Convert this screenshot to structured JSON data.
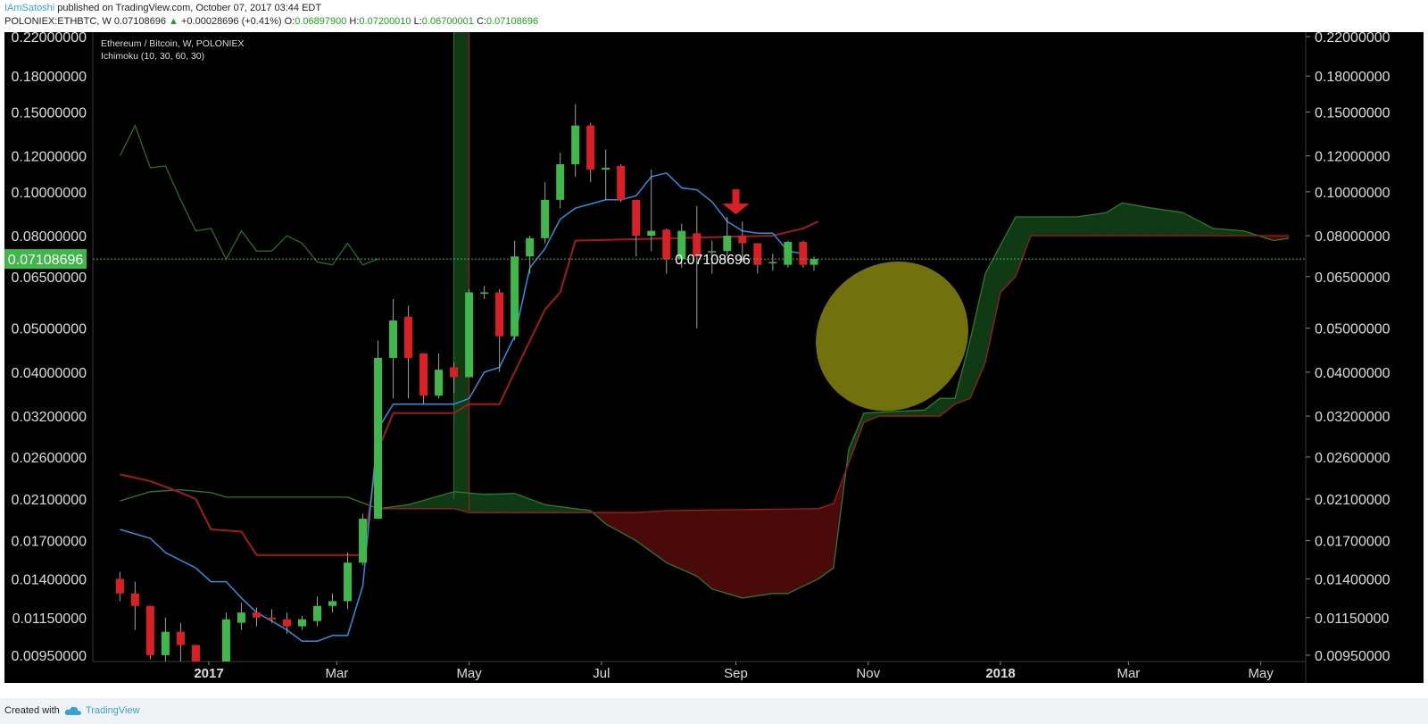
{
  "header": {
    "author": "IAmSatoshi",
    "published": " published on TradingView.com, October 07, 2017 03:44 EDT",
    "symbol": "POLONIEX:ETHBTC, W",
    "last": "0.07108696",
    "change_arrow": "▲",
    "change": "+0.00028696 (+0.41%)",
    "o_label": "O:",
    "o_value": "0.06897900",
    "h_label": "H:",
    "h_value": "0.07200010",
    "l_label": "L:",
    "l_value": "0.06700001",
    "c_label": "C:",
    "c_value": "0.07108696"
  },
  "footer": {
    "created_with": "Created with",
    "brand": "TradingView",
    "brand_icon": "tradingview-cloud-icon"
  },
  "colors": {
    "background": "#000000",
    "up_candle": "#3fb74b",
    "down_candle": "#d92026",
    "tenkan": "#2f8fe0",
    "kijun": "#a01c1c",
    "span_a": "#2d7a2d",
    "span_b": "#a01c1c",
    "cloud_bull": "#0f3a14",
    "cloud_bear": "#4a0a0a",
    "lagging": "#2f6a2a",
    "price_label_bg": "#3fb74b",
    "ellipse": "#8a8a10",
    "arrow": "#d92026",
    "axis_text": "#dcdcdc"
  },
  "chart_data": {
    "type": "candlestick",
    "title": "Ethereum / Bitcoin, W, POLONIEX",
    "indicator": "Ichimoku (10, 30, 60, 30)",
    "y_scale": "log",
    "ylim": [
      0.0092,
      0.225
    ],
    "y_ticks": [
      "0.22000000",
      "0.18000000",
      "0.15000000",
      "0.12000000",
      "0.10000000",
      "0.08000000",
      "0.06500000",
      "0.05000000",
      "0.04000000",
      "0.03200000",
      "0.02600000",
      "0.02100000",
      "0.01700000",
      "0.01400000",
      "0.01150000",
      "0.00950000"
    ],
    "x_labels": [
      {
        "label": "2017",
        "date": "2017-01-01",
        "bold": true
      },
      {
        "label": "Mar",
        "date": "2017-03-01",
        "bold": false
      },
      {
        "label": "May",
        "date": "2017-05-01",
        "bold": false
      },
      {
        "label": "Jul",
        "date": "2017-07-01",
        "bold": false
      },
      {
        "label": "Sep",
        "date": "2017-09-01",
        "bold": false
      },
      {
        "label": "Nov",
        "date": "2017-11-01",
        "bold": false
      },
      {
        "label": "2018",
        "date": "2018-01-01",
        "bold": true
      },
      {
        "label": "Mar",
        "date": "2018-03-01",
        "bold": false
      },
      {
        "label": "May",
        "date": "2018-05-01",
        "bold": false
      }
    ],
    "last_price": "0.07108696",
    "last_price_value": 0.07108696,
    "candles": [
      {
        "date": "2016-11-21",
        "o": 0.014,
        "h": 0.0145,
        "l": 0.0125,
        "c": 0.013
      },
      {
        "date": "2016-11-28",
        "o": 0.013,
        "h": 0.0138,
        "l": 0.0108,
        "c": 0.0122
      },
      {
        "date": "2016-12-05",
        "o": 0.0122,
        "h": 0.0122,
        "l": 0.0093,
        "c": 0.0095
      },
      {
        "date": "2016-12-12",
        "o": 0.0095,
        "h": 0.0115,
        "l": 0.009,
        "c": 0.0107
      },
      {
        "date": "2016-12-19",
        "o": 0.0107,
        "h": 0.0112,
        "l": 0.0092,
        "c": 0.01
      },
      {
        "date": "2016-12-26",
        "o": 0.01,
        "h": 0.01,
        "l": 0.0085,
        "c": 0.0086
      },
      {
        "date": "2017-01-09",
        "o": 0.0092,
        "h": 0.0118,
        "l": 0.009,
        "c": 0.0114
      },
      {
        "date": "2017-01-16",
        "o": 0.0112,
        "h": 0.0124,
        "l": 0.0108,
        "c": 0.0118
      },
      {
        "date": "2017-01-23",
        "o": 0.0118,
        "h": 0.0121,
        "l": 0.011,
        "c": 0.0115
      },
      {
        "date": "2017-01-30",
        "o": 0.0115,
        "h": 0.012,
        "l": 0.0112,
        "c": 0.0114
      },
      {
        "date": "2017-02-06",
        "o": 0.0114,
        "h": 0.0118,
        "l": 0.0106,
        "c": 0.011
      },
      {
        "date": "2017-02-13",
        "o": 0.011,
        "h": 0.0116,
        "l": 0.0108,
        "c": 0.0114
      },
      {
        "date": "2017-02-20",
        "o": 0.0113,
        "h": 0.0128,
        "l": 0.011,
        "c": 0.0122
      },
      {
        "date": "2017-02-27",
        "o": 0.0122,
        "h": 0.013,
        "l": 0.0118,
        "c": 0.0125
      },
      {
        "date": "2017-03-06",
        "o": 0.0125,
        "h": 0.016,
        "l": 0.012,
        "c": 0.0152
      },
      {
        "date": "2017-03-13",
        "o": 0.0152,
        "h": 0.0195,
        "l": 0.015,
        "c": 0.019
      },
      {
        "date": "2017-03-20",
        "o": 0.019,
        "h": 0.047,
        "l": 0.019,
        "c": 0.043
      },
      {
        "date": "2017-03-27",
        "o": 0.043,
        "h": 0.058,
        "l": 0.035,
        "c": 0.052
      },
      {
        "date": "2017-04-03",
        "o": 0.053,
        "h": 0.056,
        "l": 0.035,
        "c": 0.043
      },
      {
        "date": "2017-04-10",
        "o": 0.044,
        "h": 0.044,
        "l": 0.034,
        "c": 0.0355
      },
      {
        "date": "2017-04-17",
        "o": 0.0355,
        "h": 0.044,
        "l": 0.035,
        "c": 0.0405
      },
      {
        "date": "2017-04-24",
        "o": 0.041,
        "h": 0.042,
        "l": 0.036,
        "c": 0.039
      },
      {
        "date": "2017-05-01",
        "o": 0.039,
        "h": 0.061,
        "l": 0.039,
        "c": 0.06
      },
      {
        "date": "2017-05-08",
        "o": 0.06,
        "h": 0.062,
        "l": 0.058,
        "c": 0.06
      },
      {
        "date": "2017-05-15",
        "o": 0.06,
        "h": 0.061,
        "l": 0.04,
        "c": 0.048
      },
      {
        "date": "2017-05-22",
        "o": 0.048,
        "h": 0.078,
        "l": 0.047,
        "c": 0.072
      },
      {
        "date": "2017-05-29",
        "o": 0.072,
        "h": 0.08,
        "l": 0.066,
        "c": 0.079
      },
      {
        "date": "2017-06-05",
        "o": 0.079,
        "h": 0.105,
        "l": 0.077,
        "c": 0.096
      },
      {
        "date": "2017-06-12",
        "o": 0.096,
        "h": 0.122,
        "l": 0.092,
        "c": 0.115
      },
      {
        "date": "2017-06-19",
        "o": 0.115,
        "h": 0.156,
        "l": 0.108,
        "c": 0.14
      },
      {
        "date": "2017-06-26",
        "o": 0.14,
        "h": 0.142,
        "l": 0.105,
        "c": 0.112
      },
      {
        "date": "2017-07-03",
        "o": 0.112,
        "h": 0.124,
        "l": 0.096,
        "c": 0.113
      },
      {
        "date": "2017-07-10",
        "o": 0.114,
        "h": 0.115,
        "l": 0.095,
        "c": 0.096
      },
      {
        "date": "2017-07-17",
        "o": 0.096,
        "h": 0.096,
        "l": 0.072,
        "c": 0.08
      },
      {
        "date": "2017-07-24",
        "o": 0.08,
        "h": 0.112,
        "l": 0.074,
        "c": 0.082
      },
      {
        "date": "2017-07-31",
        "o": 0.0825,
        "h": 0.083,
        "l": 0.066,
        "c": 0.071
      },
      {
        "date": "2017-08-07",
        "o": 0.071,
        "h": 0.085,
        "l": 0.068,
        "c": 0.082
      },
      {
        "date": "2017-08-14",
        "o": 0.081,
        "h": 0.093,
        "l": 0.05,
        "c": 0.072
      },
      {
        "date": "2017-08-21",
        "o": 0.074,
        "h": 0.078,
        "l": 0.066,
        "c": 0.074
      },
      {
        "date": "2017-08-28",
        "o": 0.074,
        "h": 0.088,
        "l": 0.072,
        "c": 0.08
      },
      {
        "date": "2017-09-04",
        "o": 0.08,
        "h": 0.086,
        "l": 0.07,
        "c": 0.077
      },
      {
        "date": "2017-09-11",
        "o": 0.077,
        "h": 0.077,
        "l": 0.066,
        "c": 0.069
      },
      {
        "date": "2017-09-18",
        "o": 0.07,
        "h": 0.073,
        "l": 0.067,
        "c": 0.07
      },
      {
        "date": "2017-09-25",
        "o": 0.069,
        "h": 0.078,
        "l": 0.068,
        "c": 0.0775
      },
      {
        "date": "2017-10-02",
        "o": 0.0775,
        "h": 0.078,
        "l": 0.068,
        "c": 0.069
      },
      {
        "date": "2017-10-07",
        "o": 0.069,
        "h": 0.072,
        "l": 0.067,
        "c": 0.0711
      }
    ],
    "tenkan": [
      {
        "date": "2016-11-21",
        "v": 0.018
      },
      {
        "date": "2016-12-05",
        "v": 0.0172
      },
      {
        "date": "2016-12-12",
        "v": 0.016
      },
      {
        "date": "2016-12-26",
        "v": 0.0148
      },
      {
        "date": "2017-01-02",
        "v": 0.0138
      },
      {
        "date": "2017-01-09",
        "v": 0.0138
      },
      {
        "date": "2017-01-16",
        "v": 0.0127
      },
      {
        "date": "2017-01-23",
        "v": 0.0118
      },
      {
        "date": "2017-01-30",
        "v": 0.0113
      },
      {
        "date": "2017-02-06",
        "v": 0.0108
      },
      {
        "date": "2017-02-13",
        "v": 0.0102
      },
      {
        "date": "2017-02-20",
        "v": 0.0102
      },
      {
        "date": "2017-02-27",
        "v": 0.0105
      },
      {
        "date": "2017-03-06",
        "v": 0.0105
      },
      {
        "date": "2017-03-13",
        "v": 0.0135
      },
      {
        "date": "2017-03-20",
        "v": 0.03
      },
      {
        "date": "2017-03-27",
        "v": 0.034
      },
      {
        "date": "2017-04-03",
        "v": 0.034
      },
      {
        "date": "2017-04-24",
        "v": 0.034
      },
      {
        "date": "2017-05-01",
        "v": 0.035
      },
      {
        "date": "2017-05-08",
        "v": 0.04
      },
      {
        "date": "2017-05-15",
        "v": 0.041
      },
      {
        "date": "2017-05-22",
        "v": 0.048
      },
      {
        "date": "2017-05-29",
        "v": 0.068
      },
      {
        "date": "2017-06-05",
        "v": 0.075
      },
      {
        "date": "2017-06-12",
        "v": 0.087
      },
      {
        "date": "2017-06-19",
        "v": 0.092
      },
      {
        "date": "2017-06-26",
        "v": 0.094
      },
      {
        "date": "2017-07-03",
        "v": 0.096
      },
      {
        "date": "2017-07-10",
        "v": 0.096
      },
      {
        "date": "2017-07-17",
        "v": 0.098
      },
      {
        "date": "2017-07-24",
        "v": 0.108
      },
      {
        "date": "2017-07-31",
        "v": 0.11
      },
      {
        "date": "2017-08-07",
        "v": 0.102
      },
      {
        "date": "2017-08-14",
        "v": 0.101
      },
      {
        "date": "2017-08-21",
        "v": 0.095
      },
      {
        "date": "2017-08-28",
        "v": 0.086
      },
      {
        "date": "2017-09-04",
        "v": 0.082
      },
      {
        "date": "2017-09-11",
        "v": 0.081
      },
      {
        "date": "2017-09-18",
        "v": 0.081
      },
      {
        "date": "2017-09-25",
        "v": 0.074
      },
      {
        "date": "2017-10-02",
        "v": 0.073
      }
    ],
    "kijun": [
      {
        "date": "2016-11-21",
        "v": 0.0238
      },
      {
        "date": "2016-12-05",
        "v": 0.023
      },
      {
        "date": "2016-12-19",
        "v": 0.0217
      },
      {
        "date": "2016-12-26",
        "v": 0.021
      },
      {
        "date": "2017-01-02",
        "v": 0.018
      },
      {
        "date": "2017-01-16",
        "v": 0.0178
      },
      {
        "date": "2017-01-23",
        "v": 0.0158
      },
      {
        "date": "2017-03-13",
        "v": 0.0158
      },
      {
        "date": "2017-03-20",
        "v": 0.027
      },
      {
        "date": "2017-03-27",
        "v": 0.0325
      },
      {
        "date": "2017-04-24",
        "v": 0.0325
      },
      {
        "date": "2017-05-01",
        "v": 0.034
      },
      {
        "date": "2017-05-15",
        "v": 0.034
      },
      {
        "date": "2017-05-22",
        "v": 0.04
      },
      {
        "date": "2017-06-05",
        "v": 0.055
      },
      {
        "date": "2017-06-12",
        "v": 0.06
      },
      {
        "date": "2017-06-19",
        "v": 0.078
      },
      {
        "date": "2017-09-18",
        "v": 0.08
      },
      {
        "date": "2017-10-02",
        "v": 0.083
      },
      {
        "date": "2017-10-09",
        "v": 0.086
      }
    ],
    "lagging": [
      {
        "date": "2016-11-21",
        "v": 0.12
      },
      {
        "date": "2016-11-28",
        "v": 0.14
      },
      {
        "date": "2016-12-05",
        "v": 0.113
      },
      {
        "date": "2016-12-12",
        "v": 0.114
      },
      {
        "date": "2016-12-19",
        "v": 0.096
      },
      {
        "date": "2016-12-26",
        "v": 0.082
      },
      {
        "date": "2017-01-02",
        "v": 0.083
      },
      {
        "date": "2017-01-09",
        "v": 0.071
      },
      {
        "date": "2017-01-16",
        "v": 0.082
      },
      {
        "date": "2017-01-23",
        "v": 0.074
      },
      {
        "date": "2017-01-30",
        "v": 0.074
      },
      {
        "date": "2017-02-06",
        "v": 0.08
      },
      {
        "date": "2017-02-13",
        "v": 0.077
      },
      {
        "date": "2017-02-20",
        "v": 0.07
      },
      {
        "date": "2017-02-27",
        "v": 0.069
      },
      {
        "date": "2017-03-06",
        "v": 0.077
      },
      {
        "date": "2017-03-13",
        "v": 0.069
      },
      {
        "date": "2017-03-20",
        "v": 0.0711
      }
    ],
    "span_a": [
      {
        "date": "2016-11-21",
        "v": 0.0208
      },
      {
        "date": "2016-12-05",
        "v": 0.0218
      },
      {
        "date": "2016-12-19",
        "v": 0.022
      },
      {
        "date": "2017-01-02",
        "v": 0.0217
      },
      {
        "date": "2017-01-09",
        "v": 0.0212
      },
      {
        "date": "2017-03-06",
        "v": 0.0212
      },
      {
        "date": "2017-03-20",
        "v": 0.02
      },
      {
        "date": "2017-04-03",
        "v": 0.0204
      },
      {
        "date": "2017-04-24",
        "v": 0.0218
      },
      {
        "date": "2017-05-08",
        "v": 0.0215
      },
      {
        "date": "2017-05-22",
        "v": 0.0216
      },
      {
        "date": "2017-06-05",
        "v": 0.0204
      },
      {
        "date": "2017-06-26",
        "v": 0.0198
      },
      {
        "date": "2017-07-03",
        "v": 0.0185
      },
      {
        "date": "2017-07-17",
        "v": 0.017
      },
      {
        "date": "2017-07-31",
        "v": 0.0152
      },
      {
        "date": "2017-08-14",
        "v": 0.0142
      },
      {
        "date": "2017-08-21",
        "v": 0.0133
      },
      {
        "date": "2017-09-04",
        "v": 0.0127
      },
      {
        "date": "2017-09-18",
        "v": 0.013
      },
      {
        "date": "2017-09-25",
        "v": 0.013
      },
      {
        "date": "2017-10-09",
        "v": 0.014
      },
      {
        "date": "2017-10-16",
        "v": 0.0148
      },
      {
        "date": "2017-10-23",
        "v": 0.027
      },
      {
        "date": "2017-10-30",
        "v": 0.0325
      },
      {
        "date": "2017-11-27",
        "v": 0.033
      },
      {
        "date": "2017-12-04",
        "v": 0.035
      },
      {
        "date": "2017-12-11",
        "v": 0.035
      },
      {
        "date": "2017-12-18",
        "v": 0.047
      },
      {
        "date": "2017-12-25",
        "v": 0.066
      },
      {
        "date": "2018-01-08",
        "v": 0.088
      },
      {
        "date": "2018-02-05",
        "v": 0.088
      },
      {
        "date": "2018-02-19",
        "v": 0.09
      },
      {
        "date": "2018-02-26",
        "v": 0.0945
      },
      {
        "date": "2018-03-12",
        "v": 0.092
      },
      {
        "date": "2018-03-26",
        "v": 0.09
      },
      {
        "date": "2018-04-09",
        "v": 0.083
      },
      {
        "date": "2018-04-23",
        "v": 0.082
      },
      {
        "date": "2018-05-07",
        "v": 0.078
      },
      {
        "date": "2018-05-14",
        "v": 0.079
      }
    ],
    "span_b": [
      {
        "date": "2017-03-20",
        "v": 0.02
      },
      {
        "date": "2017-04-24",
        "v": 0.02
      },
      {
        "date": "2017-05-01",
        "v": 0.0196
      },
      {
        "date": "2017-07-17",
        "v": 0.0196
      },
      {
        "date": "2017-07-31",
        "v": 0.0198
      },
      {
        "date": "2017-10-09",
        "v": 0.02
      },
      {
        "date": "2017-10-16",
        "v": 0.0205
      },
      {
        "date": "2017-10-30",
        "v": 0.031
      },
      {
        "date": "2017-11-06",
        "v": 0.032
      },
      {
        "date": "2017-12-04",
        "v": 0.032
      },
      {
        "date": "2017-12-11",
        "v": 0.034
      },
      {
        "date": "2017-12-18",
        "v": 0.035
      },
      {
        "date": "2017-12-25",
        "v": 0.042
      },
      {
        "date": "2018-01-01",
        "v": 0.06
      },
      {
        "date": "2018-01-08",
        "v": 0.065
      },
      {
        "date": "2018-01-15",
        "v": 0.08
      },
      {
        "date": "2018-05-14",
        "v": 0.08
      }
    ],
    "projection_spike": {
      "from": "2017-04-24",
      "to": "2017-05-01",
      "low": 0.021,
      "high": 0.225
    },
    "annotations": [
      {
        "type": "ellipse",
        "label": "highlight",
        "center_date": "2017-11-12",
        "center_price": 0.048
      },
      {
        "type": "arrow-down",
        "date": "2017-09-01",
        "price": 0.09
      }
    ]
  }
}
